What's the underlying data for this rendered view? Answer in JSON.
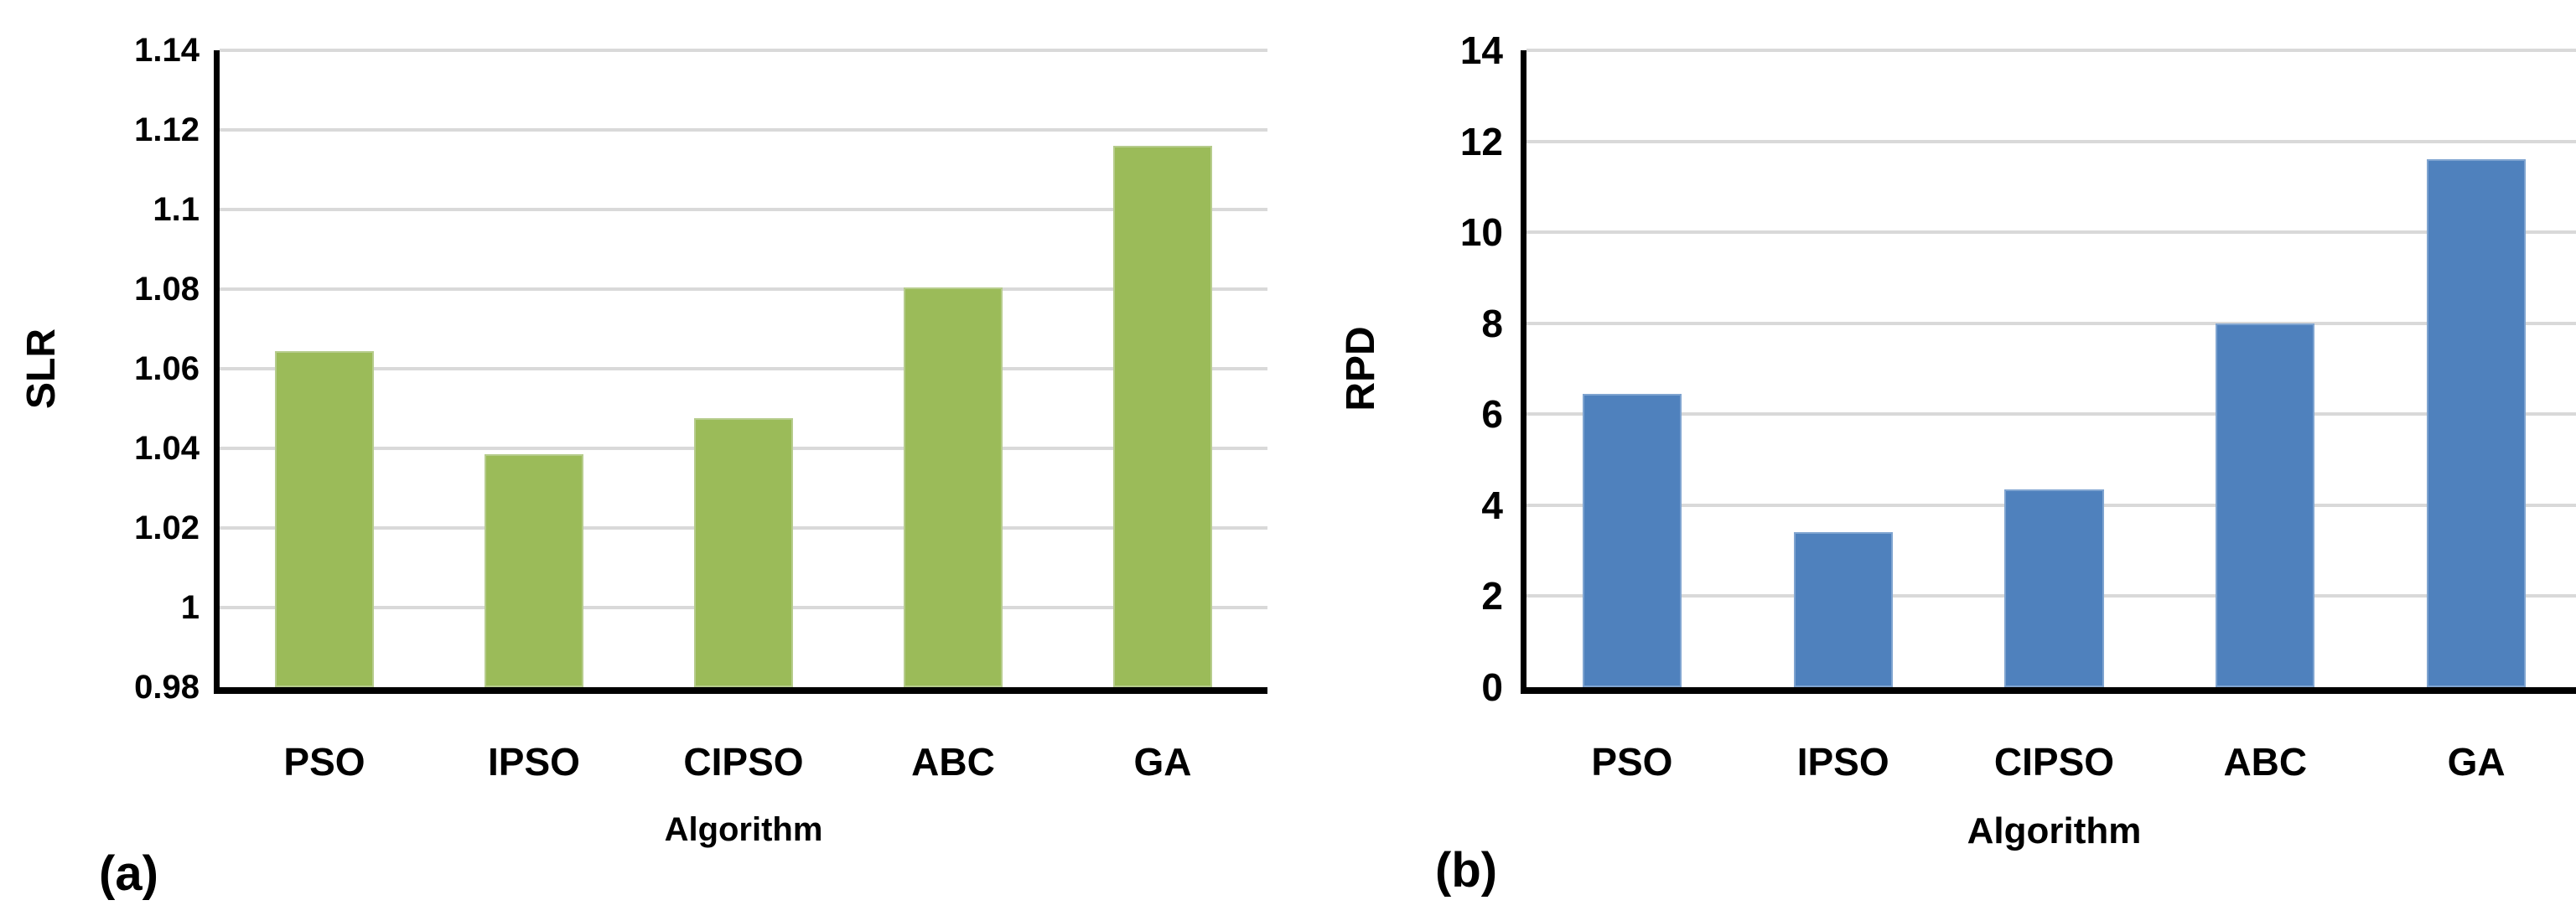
{
  "figure": {
    "background": "#ffffff",
    "text_color": "#000000",
    "axis_color": "#000000"
  },
  "chart_data": [
    {
      "type": "bar",
      "panel_letter": "(a)",
      "title": "",
      "categories": [
        "PSO",
        "IPSO",
        "CIPSO",
        "ABC",
        "GA"
      ],
      "values": [
        1.0645,
        1.0385,
        1.0475,
        1.0805,
        1.116
      ],
      "xlabel": "Algorithm",
      "ylabel": "SLR",
      "ylim": [
        0.98,
        1.14
      ],
      "ytick_step": 0.02,
      "ytick_labels": [
        "0.98",
        "1",
        "1.02",
        "1.04",
        "1.06",
        "1.08",
        "1.1",
        "1.12",
        "1.14"
      ],
      "bar_fill": "#9bbb59",
      "bar_edge": "#b6cc8c",
      "grid": true,
      "gridline_color": "#d9d9d9",
      "legend": "none"
    },
    {
      "type": "bar",
      "panel_letter": "(b)",
      "title": "",
      "categories": [
        "PSO",
        "IPSO",
        "CIPSO",
        "ABC",
        "GA"
      ],
      "values": [
        6.45,
        3.4,
        4.35,
        8,
        11.6
      ],
      "xlabel": "Algorithm",
      "ylabel": "RPD",
      "ylim": [
        0,
        14
      ],
      "ytick_step": 2,
      "ytick_labels": [
        "0",
        "2",
        "4",
        "6",
        "8",
        "10",
        "12",
        "14"
      ],
      "bar_fill": "#4f81bd",
      "bar_edge": "#7fa4d0",
      "grid": true,
      "gridline_color": "#d9d9d9",
      "legend": "none"
    }
  ]
}
